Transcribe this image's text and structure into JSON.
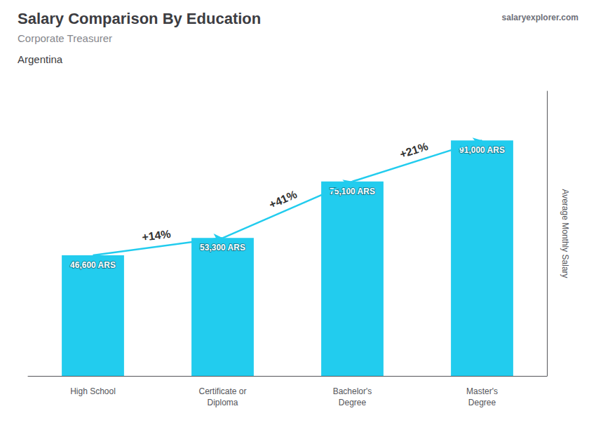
{
  "chart_data": {
    "type": "bar",
    "title": "Salary Comparison By Education",
    "subtitle": "Corporate Treasurer",
    "country": "Argentina",
    "site": "salaryexplorer.com",
    "ylabel": "Average Monthly Salary",
    "categories": [
      "High School",
      "Certificate or\nDiploma",
      "Bachelor's\nDegree",
      "Master's\nDegree"
    ],
    "values": [
      46600,
      53300,
      75100,
      91000
    ],
    "value_labels": [
      "46,600 ARS",
      "53,300 ARS",
      "75,100 ARS",
      "91,000 ARS"
    ],
    "data_labels": true,
    "annotations": [
      "+14%",
      "+41%",
      "+21%"
    ],
    "color": "#22ccee",
    "ylim": [
      0,
      110000
    ],
    "grid": false,
    "tick_labels": "x"
  }
}
